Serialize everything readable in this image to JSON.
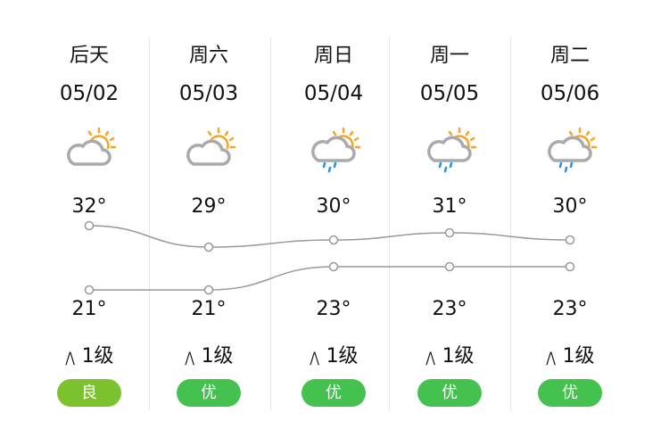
{
  "days": [
    {
      "day": "后天",
      "date": "05/02",
      "icon": "partly-cloudy-icon",
      "high": "32°",
      "low": "21°",
      "wind": "1级",
      "aqi": "良",
      "aqi_color": "#7cc22f"
    },
    {
      "day": "周六",
      "date": "05/03",
      "icon": "partly-cloudy-icon",
      "high": "29°",
      "low": "21°",
      "wind": "1级",
      "aqi": "优",
      "aqi_color": "#45c14f"
    },
    {
      "day": "周日",
      "date": "05/04",
      "icon": "sun-shower-icon",
      "high": "30°",
      "low": "23°",
      "wind": "1级",
      "aqi": "优",
      "aqi_color": "#45c14f"
    },
    {
      "day": "周一",
      "date": "05/05",
      "icon": "sun-shower-icon",
      "high": "31°",
      "low": "23°",
      "wind": "1级",
      "aqi": "优",
      "aqi_color": "#45c14f"
    },
    {
      "day": "周二",
      "date": "05/06",
      "icon": "sun-shower-icon",
      "high": "30°",
      "low": "23°",
      "wind": "1级",
      "aqi": "优",
      "aqi_color": "#45c14f"
    }
  ],
  "temps": {
    "high": [
      32,
      29,
      30,
      31,
      30
    ],
    "low": [
      21,
      21,
      23,
      23,
      23
    ]
  }
}
